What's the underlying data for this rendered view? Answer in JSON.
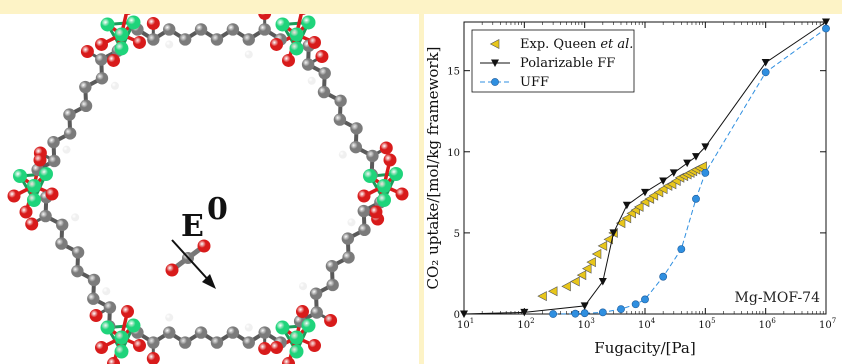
{
  "left_panel": {
    "field_symbol": "E",
    "field_superscript": "0",
    "colors": {
      "carbon": "#7b7b7b",
      "oxygen": "#d81b1b",
      "magnesium": "#1fd47b",
      "hydrogen": "#f0f0f0",
      "bond": "#5a5a5a"
    }
  },
  "chart_data": {
    "type": "scatter",
    "title": "",
    "xlabel": "Fugacity/[Pa]",
    "ylabel": "CO₂ uptake/[mol/kg framework]",
    "xscale": "log",
    "xlim": [
      10,
      10000000
    ],
    "ylim": [
      0,
      18
    ],
    "x_tick_labels": [
      {
        "value": 10,
        "mant": "10",
        "exp": "1"
      },
      {
        "value": 100,
        "mant": "10",
        "exp": "2"
      },
      {
        "value": 1000,
        "mant": "10",
        "exp": "3"
      },
      {
        "value": 10000,
        "mant": "10",
        "exp": "4"
      },
      {
        "value": 100000,
        "mant": "10",
        "exp": "5"
      },
      {
        "value": 1000000,
        "mant": "10",
        "exp": "6"
      },
      {
        "value": 10000000,
        "mant": "10",
        "exp": "7"
      }
    ],
    "y_ticks": [
      0,
      5,
      10,
      15
    ],
    "grid": false,
    "legend_position": "top-left",
    "annotation": "Mg-MOF-74",
    "series": [
      {
        "name": "Exp. Queen et al.",
        "name_plain": "Exp. Queen",
        "name_italic": "et al.",
        "marker": "triangle-left",
        "line": false,
        "color": "#e8c61b",
        "points": [
          [
            200,
            1.1
          ],
          [
            300,
            1.4
          ],
          [
            500,
            1.7
          ],
          [
            700,
            2.0
          ],
          [
            900,
            2.4
          ],
          [
            1100,
            2.8
          ],
          [
            1300,
            3.2
          ],
          [
            1600,
            3.7
          ],
          [
            2000,
            4.2
          ],
          [
            2500,
            4.6
          ],
          [
            3000,
            5.0
          ],
          [
            4000,
            5.6
          ],
          [
            5000,
            5.9
          ],
          [
            6000,
            6.2
          ],
          [
            7000,
            6.4
          ],
          [
            8000,
            6.6
          ],
          [
            10000,
            6.9
          ],
          [
            12000,
            7.1
          ],
          [
            14000,
            7.3
          ],
          [
            17000,
            7.5
          ],
          [
            20000,
            7.7
          ],
          [
            24000,
            7.9
          ],
          [
            28000,
            8.0
          ],
          [
            33000,
            8.2
          ],
          [
            38000,
            8.4
          ],
          [
            44000,
            8.5
          ],
          [
            50000,
            8.6
          ],
          [
            56000,
            8.7
          ],
          [
            62000,
            8.8
          ],
          [
            70000,
            8.9
          ],
          [
            80000,
            9.0
          ],
          [
            90000,
            9.1
          ]
        ]
      },
      {
        "name": "Polarizable FF",
        "marker": "triangle-down",
        "line": true,
        "line_style": "solid",
        "color": "#111111",
        "points": [
          [
            10,
            0
          ],
          [
            100,
            0.1
          ],
          [
            1000,
            0.5
          ],
          [
            2000,
            2.0
          ],
          [
            3000,
            5.0
          ],
          [
            5000,
            6.7
          ],
          [
            10000,
            7.5
          ],
          [
            20000,
            8.2
          ],
          [
            30000,
            8.7
          ],
          [
            50000,
            9.3
          ],
          [
            70000,
            9.7
          ],
          [
            100000,
            10.3
          ],
          [
            1000000,
            15.5
          ],
          [
            10000000,
            18.0
          ]
        ]
      },
      {
        "name": "UFF",
        "marker": "circle",
        "line": true,
        "line_style": "dashed",
        "color": "#2f8fe0",
        "points": [
          [
            300,
            0.0
          ],
          [
            700,
            0.02
          ],
          [
            1000,
            0.05
          ],
          [
            2000,
            0.1
          ],
          [
            4000,
            0.3
          ],
          [
            7000,
            0.6
          ],
          [
            10000,
            0.9
          ],
          [
            20000,
            2.3
          ],
          [
            40000,
            4.0
          ],
          [
            70000,
            7.1
          ],
          [
            100000,
            8.7
          ],
          [
            1000000,
            14.9
          ],
          [
            10000000,
            17.6
          ]
        ]
      }
    ]
  }
}
